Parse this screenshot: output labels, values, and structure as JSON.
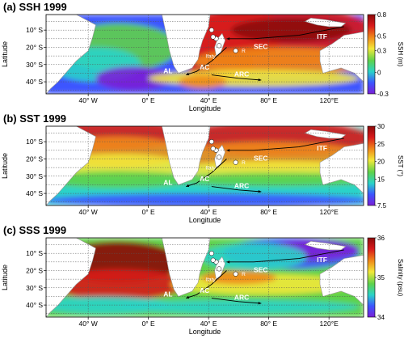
{
  "chart_data": [
    {
      "type": "heatmap",
      "panel_label": "(a)",
      "title": "SSH 1999",
      "xlabel": "Longitude",
      "ylabel": "Latitude",
      "x_ticks": [
        "40° W",
        "0° E",
        "40° E",
        "80° E",
        "120°E"
      ],
      "y_ticks": [
        "10° S",
        "20° S",
        "30° S",
        "40° S"
      ],
      "colorbar": {
        "label": "SSH (m)",
        "ticks": [
          "0.8",
          "0.5",
          "0.3",
          "0",
          "-0.3"
        ],
        "range": [
          -0.3,
          0.8
        ]
      },
      "annotations": [
        "AL",
        "AC",
        "ARC",
        "SEC",
        "ITF",
        "Ifaty",
        "R"
      ],
      "palette": [
        "#7a1fd6",
        "#3c55ff",
        "#2ad3c8",
        "#5ed24a",
        "#f2e83a",
        "#f08a1a",
        "#d8191b",
        "#8c0a0a"
      ]
    },
    {
      "type": "heatmap",
      "panel_label": "(b)",
      "title": "SST 1999",
      "xlabel": "Longitude",
      "ylabel": "Latitude",
      "x_ticks": [
        "40° W",
        "0° E",
        "40° E",
        "80° E",
        "120°E"
      ],
      "y_ticks": [
        "10° S",
        "20° S",
        "30° S",
        "40° S"
      ],
      "colorbar": {
        "label": "SST (°)",
        "ticks": [
          "30",
          "25",
          "20",
          "15",
          "7.5"
        ],
        "range": [
          7.5,
          30
        ]
      },
      "annotations": [
        "AL",
        "AC",
        "ARC",
        "SEC",
        "ITF",
        "Ifaty",
        "R"
      ],
      "palette": [
        "#7a1fd6",
        "#3c55ff",
        "#2ad3c8",
        "#5ed24a",
        "#f2e83a",
        "#f08a1a",
        "#d8191b",
        "#8c0a0a"
      ]
    },
    {
      "type": "heatmap",
      "panel_label": "(c)",
      "title": "SSS 1999",
      "xlabel": "Longitude",
      "ylabel": "Latitude",
      "x_ticks": [
        "40° W",
        "0° E",
        "40° E",
        "80° E",
        "120°E"
      ],
      "y_ticks": [
        "10° S",
        "20° S",
        "30° S",
        "40° S"
      ],
      "colorbar": {
        "label": "Salinity (psu)",
        "ticks": [
          "36",
          "35",
          "34"
        ],
        "range": [
          34,
          36
        ]
      },
      "annotations": [
        "AL",
        "AC",
        "ARC",
        "SEC",
        "ITF",
        "Ifaty",
        "R"
      ],
      "palette": [
        "#7a1fd6",
        "#3c55ff",
        "#2ad3c8",
        "#5ed24a",
        "#f2e83a",
        "#f08a1a",
        "#d8191b",
        "#8c0a0a"
      ]
    }
  ]
}
